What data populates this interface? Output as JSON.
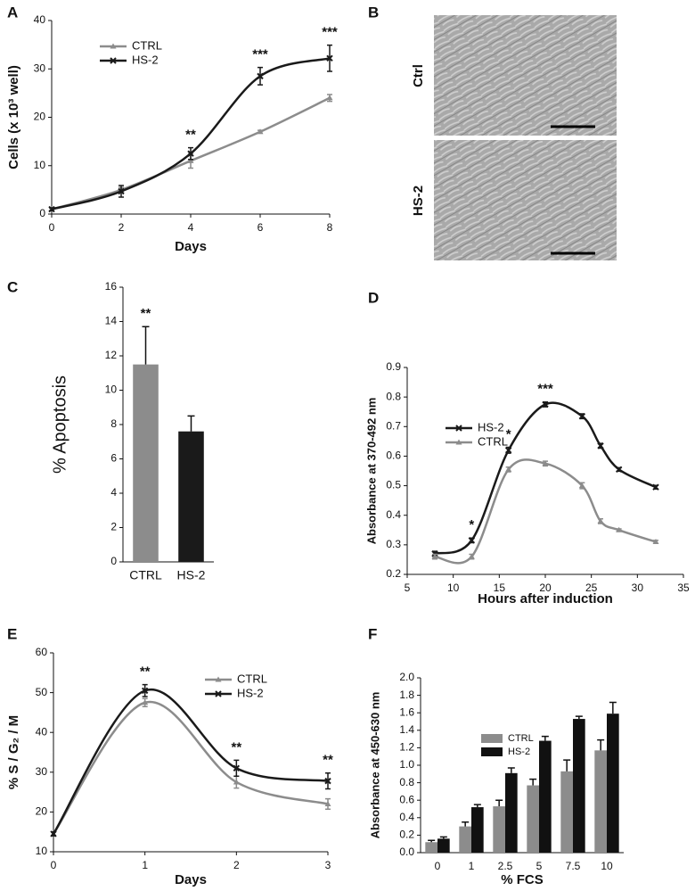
{
  "chart_data": [
    {
      "type": "line",
      "panel": "A",
      "x": [
        0,
        2,
        4,
        6,
        8
      ],
      "xlim": [
        0,
        8
      ],
      "xticks": [
        0,
        2,
        4,
        6,
        8
      ],
      "ylim": [
        0,
        40
      ],
      "yticks": [
        0,
        10,
        20,
        30,
        40
      ],
      "x_label": "Days",
      "y_label": "Cells (x 10³ well)",
      "legend": "upper left",
      "series": [
        {
          "name": "CTRL",
          "color": "#8c8c8c",
          "marker": "triangle",
          "values": [
            1,
            5,
            11,
            17,
            24
          ],
          "errors": [
            0.3,
            0.5,
            1.5,
            0.3,
            0.7
          ]
        },
        {
          "name": "HS-2",
          "color": "#1a1a1a",
          "marker": "cross",
          "values": [
            1,
            4.7,
            12.5,
            28.5,
            32.2
          ],
          "errors": [
            0.3,
            1.2,
            1.2,
            1.8,
            2.7
          ]
        }
      ],
      "annotations": [
        null,
        null,
        "**",
        "***",
        "***"
      ]
    },
    {
      "type": "bar",
      "panel": "C",
      "categories": [
        "CTRL",
        "HS-2"
      ],
      "values": [
        11.5,
        7.6
      ],
      "errors": [
        2.2,
        0.9
      ],
      "colors": [
        "#8c8c8c",
        "#1a1a1a"
      ],
      "ylim": [
        0,
        16
      ],
      "yticks": [
        0,
        2,
        4,
        6,
        8,
        10,
        12,
        14,
        16
      ],
      "y_label": "% Apoptosis",
      "annotations": [
        "**",
        null
      ]
    },
    {
      "type": "line",
      "panel": "D",
      "x": [
        8,
        12,
        16,
        20,
        24,
        26,
        28,
        32
      ],
      "xlim": [
        5,
        35
      ],
      "xticks": [
        5,
        10,
        15,
        20,
        25,
        30,
        35
      ],
      "ylim": [
        0.2,
        0.9
      ],
      "yticks": [
        0.2,
        0.3,
        0.4,
        0.5,
        0.6,
        0.7,
        0.8,
        0.9
      ],
      "x_label": "Hours after induction",
      "y_label": "Absorbance at 370-492 nm",
      "legend": "upper left",
      "series": [
        {
          "name": "HS-2",
          "color": "#1a1a1a",
          "marker": "cross",
          "values": [
            0.27,
            0.315,
            0.62,
            0.775,
            0.735,
            0.635,
            0.555,
            0.495
          ],
          "errors": [
            0.008,
            0.008,
            0.01,
            0.008,
            0.008,
            0.008,
            0.006,
            0.006
          ]
        },
        {
          "name": "CTRL",
          "color": "#8c8c8c",
          "marker": "triangle",
          "values": [
            0.26,
            0.26,
            0.555,
            0.575,
            0.5,
            0.38,
            0.35,
            0.31
          ],
          "errors": [
            0.008,
            0.008,
            0.008,
            0.008,
            0.01,
            0.008,
            0.004,
            0.005
          ]
        }
      ],
      "annotations": [
        null,
        "*",
        "*",
        "***",
        null,
        null,
        null,
        null
      ]
    },
    {
      "type": "line",
      "panel": "E",
      "x": [
        0,
        1,
        2,
        3
      ],
      "xlim": [
        0,
        3
      ],
      "xticks": [
        0,
        1,
        2,
        3
      ],
      "ylim": [
        10,
        60
      ],
      "yticks": [
        10,
        20,
        30,
        40,
        50,
        60
      ],
      "x_label": "Days",
      "y_label": "% S / G₂ / M",
      "legend": "upper center",
      "series": [
        {
          "name": "CTRL",
          "color": "#8c8c8c",
          "marker": "triangle",
          "values": [
            14.5,
            47.5,
            27.5,
            22
          ],
          "errors": [
            0.5,
            1,
            1.5,
            1.3
          ]
        },
        {
          "name": "HS-2",
          "color": "#1a1a1a",
          "marker": "cross",
          "values": [
            14.5,
            50.5,
            31,
            27.8
          ],
          "errors": [
            0.5,
            1.5,
            2,
            2
          ]
        }
      ],
      "annotations": [
        null,
        "**",
        "**",
        "**"
      ]
    },
    {
      "type": "bar",
      "panel": "F",
      "categories": [
        "0",
        "1",
        "2.5",
        "5",
        "7.5",
        "10"
      ],
      "ylim": [
        0,
        2
      ],
      "yticks": [
        {
          "value": 0,
          "label": "0.0"
        },
        0.2,
        0.4,
        0.6,
        0.8,
        {
          "value": 1,
          "label": "1.0"
        },
        1.2,
        1.4,
        1.6,
        1.8,
        {
          "value": 2,
          "label": "2.0"
        }
      ],
      "x_label": "% FCS",
      "y_label": "Absorbance at 450-630 nm",
      "legend": "upper left",
      "series": [
        {
          "name": "CTRL",
          "color": "#8c8c8c",
          "values": [
            0.12,
            0.3,
            0.53,
            0.77,
            0.93,
            1.17
          ],
          "errors": [
            0.02,
            0.05,
            0.07,
            0.07,
            0.13,
            0.12
          ]
        },
        {
          "name": "HS-2",
          "color": "#111111",
          "values": [
            0.16,
            0.52,
            0.91,
            1.28,
            1.53,
            1.59
          ],
          "errors": [
            0.02,
            0.03,
            0.06,
            0.05,
            0.03,
            0.13
          ]
        }
      ]
    }
  ],
  "image_panel": {
    "panel": "B",
    "rows": [
      "Ctrl",
      "HS-2"
    ]
  }
}
